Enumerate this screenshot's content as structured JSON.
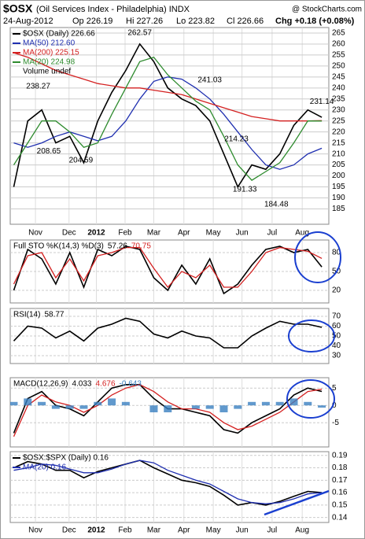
{
  "header": {
    "symbol": "$OSX",
    "name": "(Oil Services Index - Philadelphia) INDX",
    "date": "24-Aug-2012",
    "open": "Op 226.19",
    "high": "Hi 227.26",
    "low": "Lo 223.82",
    "close": "Cl 226.66",
    "change": "Chg +0.18 (+0.08%)",
    "credit": "@ StockCharts.com"
  },
  "chart_data": [
    {
      "type": "line",
      "volume_label": "Volume undef",
      "x": [
        0,
        2,
        4,
        6,
        8,
        10,
        12,
        14,
        16,
        18,
        20,
        22,
        24,
        26,
        28,
        30,
        32,
        34,
        36,
        38,
        40,
        42,
        44
      ],
      "xlim": [
        -0.5,
        45
      ],
      "xticks": [
        {
          "value": 3.1,
          "label": "Nov"
        },
        {
          "value": 7.9,
          "label": "Dec"
        },
        {
          "value": 11.8,
          "label": "2012"
        },
        {
          "value": 15.9,
          "label": "Feb"
        },
        {
          "value": 20.0,
          "label": "Mar"
        },
        {
          "value": 24.3,
          "label": "Apr"
        },
        {
          "value": 28.5,
          "label": "May"
        },
        {
          "value": 32.6,
          "label": "Jun"
        },
        {
          "value": 36.9,
          "label": "Jul"
        },
        {
          "value": 41.2,
          "label": "Aug"
        }
      ],
      "ylim": [
        178,
        267.5
      ],
      "yticks": [
        185,
        190,
        195,
        200,
        205,
        210,
        215,
        220,
        225,
        230,
        235,
        240,
        245,
        250,
        255,
        260,
        265
      ],
      "series": [
        {
          "name": "$OSX (Daily) 226.66",
          "color": "#000000",
          "values": [
            195,
            225,
            230,
            215,
            218,
            206,
            225,
            238,
            248,
            260,
            252,
            240,
            235,
            232,
            225,
            210,
            195,
            205,
            203,
            210,
            223,
            230,
            226.66
          ]
        },
        {
          "name": "MA(50) 212.60",
          "color": "#1f2fb0",
          "values": [
            215,
            213,
            215,
            218,
            220,
            218,
            216,
            218,
            225,
            235,
            243,
            245,
            244,
            240,
            235,
            228,
            220,
            212,
            205,
            203,
            205,
            210,
            212.6
          ]
        },
        {
          "name": "MA(200) 225.15",
          "color": "#d42020",
          "values": [
            256,
            254,
            251,
            248,
            246,
            244,
            242,
            241,
            240,
            240,
            239,
            238,
            237,
            235,
            233,
            231,
            229,
            227,
            226,
            225,
            225,
            225,
            225.15
          ]
        },
        {
          "name": "MA(20) 224.98",
          "color": "#2e8b2e",
          "values": [
            205,
            215,
            225,
            225,
            220,
            213,
            215,
            228,
            240,
            252,
            254,
            246,
            240,
            234,
            230,
            218,
            205,
            198,
            202,
            206,
            215,
            225,
            224.98
          ]
        }
      ],
      "annotations": [
        {
          "x": 18,
          "value": 262.57
        },
        {
          "x": 3.5,
          "value": 238.27
        },
        {
          "x": 5,
          "value": 208.65
        },
        {
          "x": 9.6,
          "value": 204.59
        },
        {
          "x": 28,
          "value": 241.03
        },
        {
          "x": 31.8,
          "value": 214.23
        },
        {
          "x": 33,
          "value": 191.33
        },
        {
          "x": 37.5,
          "value": 184.48
        },
        {
          "x": 44,
          "value": 231.14
        }
      ]
    },
    {
      "type": "line",
      "title": "Full STO %K(14,3) %D(3)",
      "x": [
        0,
        2,
        4,
        6,
        8,
        10,
        12,
        14,
        16,
        18,
        20,
        22,
        24,
        26,
        28,
        30,
        32,
        34,
        36,
        38,
        40,
        42,
        44
      ],
      "ylim": [
        0,
        100
      ],
      "yticks": [
        20,
        50,
        80
      ],
      "series": [
        {
          "name": "57.26",
          "color": "#000000",
          "values": [
            20,
            85,
            70,
            30,
            80,
            25,
            85,
            75,
            90,
            85,
            40,
            20,
            60,
            30,
            70,
            15,
            30,
            60,
            85,
            90,
            80,
            85,
            57.26
          ]
        },
        {
          "name": "70.75",
          "color": "#d42020",
          "values": [
            30,
            75,
            80,
            40,
            70,
            35,
            75,
            80,
            88,
            88,
            55,
            25,
            50,
            40,
            60,
            25,
            25,
            50,
            80,
            88,
            85,
            82,
            70.75
          ]
        }
      ]
    },
    {
      "type": "line",
      "title": "RSI(14)",
      "x": [
        0,
        2,
        4,
        6,
        8,
        10,
        12,
        14,
        16,
        18,
        20,
        22,
        24,
        26,
        28,
        30,
        32,
        34,
        36,
        38,
        40,
        42,
        44
      ],
      "ylim": [
        22,
        78
      ],
      "yticks": [
        30,
        40,
        50,
        60,
        70
      ],
      "series": [
        {
          "name": "58.77",
          "color": "#000000",
          "values": [
            45,
            60,
            58,
            48,
            55,
            45,
            58,
            62,
            68,
            65,
            52,
            48,
            55,
            50,
            48,
            38,
            38,
            50,
            58,
            65,
            62,
            62,
            58.77
          ]
        }
      ]
    },
    {
      "type": "line",
      "title": "MACD(12,26,9)",
      "x": [
        0,
        2,
        4,
        6,
        8,
        10,
        12,
        14,
        16,
        18,
        20,
        22,
        24,
        26,
        28,
        30,
        32,
        34,
        36,
        38,
        40,
        42,
        44
      ],
      "ylim": [
        -12,
        8
      ],
      "yticks": [
        -5,
        0,
        5
      ],
      "series": [
        {
          "name": "4.033",
          "color": "#000000",
          "values": [
            -8,
            2,
            4,
            0,
            -1,
            -3,
            1,
            5,
            6,
            6,
            2,
            -1,
            -1,
            -2,
            -3,
            -7,
            -8,
            -5,
            -3,
            -1,
            3,
            5,
            4.033
          ]
        },
        {
          "name": "4.676",
          "color": "#d42020",
          "values": [
            -9,
            0,
            3,
            1,
            0,
            -2,
            0,
            3,
            5,
            6,
            4,
            1,
            -1,
            -1,
            -2,
            -5,
            -7,
            -6,
            -4,
            -2,
            1,
            4,
            4.676
          ]
        },
        {
          "name": "-0.643",
          "color": "#3a7fc1",
          "type": "bar",
          "values": [
            1,
            2,
            1,
            -1,
            -1,
            -1,
            1,
            2,
            1,
            0,
            -2,
            -2,
            0,
            -1,
            -1,
            -2,
            -1,
            1,
            1,
            1,
            2,
            1,
            -0.643
          ]
        }
      ]
    },
    {
      "type": "line",
      "x": [
        0,
        2,
        4,
        6,
        8,
        10,
        12,
        14,
        16,
        18,
        20,
        22,
        24,
        26,
        28,
        30,
        32,
        34,
        36,
        38,
        40,
        42,
        44
      ],
      "ylim": [
        0.136,
        0.193
      ],
      "yticks": [
        0.14,
        0.15,
        0.16,
        0.17,
        0.18,
        0.19
      ],
      "series": [
        {
          "name": "$OSX:$SPX (Daily) 0.16",
          "color": "#000000",
          "values": [
            0.18,
            0.185,
            0.183,
            0.178,
            0.178,
            0.172,
            0.177,
            0.18,
            0.183,
            0.186,
            0.18,
            0.175,
            0.17,
            0.168,
            0.165,
            0.158,
            0.15,
            0.152,
            0.15,
            0.153,
            0.157,
            0.161,
            0.16
          ]
        },
        {
          "name": "MA(20) 0.16",
          "color": "#1f2fb0",
          "values": [
            0.178,
            0.18,
            0.183,
            0.182,
            0.179,
            0.176,
            0.176,
            0.179,
            0.183,
            0.186,
            0.184,
            0.178,
            0.174,
            0.17,
            0.167,
            0.161,
            0.155,
            0.152,
            0.151,
            0.152,
            0.155,
            0.159,
            0.16
          ]
        }
      ]
    }
  ]
}
